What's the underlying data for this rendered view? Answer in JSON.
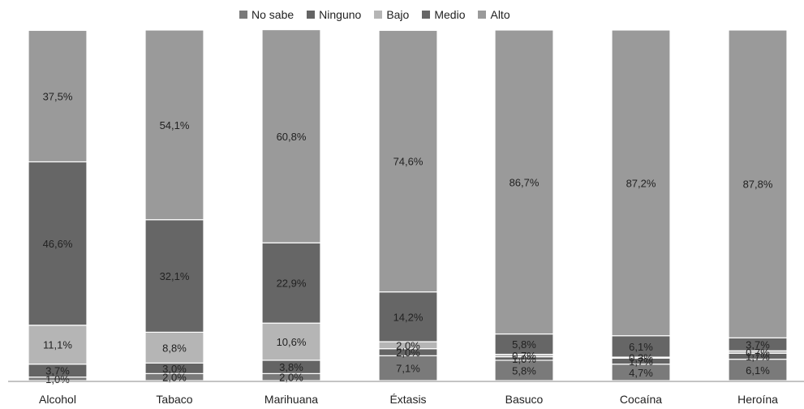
{
  "chart_data": {
    "type": "bar",
    "stacked": true,
    "percent": true,
    "categories": [
      "Alcohol",
      "Tabaco",
      "Marihuana",
      "Éxtasis",
      "Basuco",
      "Cocaína",
      "Heroína"
    ],
    "series": [
      {
        "name": "No sabe",
        "color": "#7a7a7a",
        "values": [
          1.0,
          2.0,
          2.0,
          7.1,
          5.8,
          4.7,
          6.1
        ],
        "labels": [
          "1,0%",
          "2,0%",
          "2,0%",
          "7,1%",
          "5,8%",
          "4,7%",
          "6,1%"
        ]
      },
      {
        "name": "Ninguno",
        "color": "#646464",
        "values": [
          3.7,
          3.0,
          3.8,
          2.0,
          1.0,
          1.7,
          1.7
        ],
        "labels": [
          "3,7%",
          "3,0%",
          "3,8%",
          "2,0%",
          "1,0%",
          "1,7%",
          "1,7%"
        ]
      },
      {
        "name": "Bajo",
        "color": "#b5b5b5",
        "values": [
          11.1,
          8.8,
          10.6,
          2.0,
          0.7,
          0.3,
          0.7
        ],
        "labels": [
          "11,1%",
          "8,8%",
          "10,6%",
          "2,0%",
          "0,7%",
          "0,3%",
          "0,7%"
        ]
      },
      {
        "name": "Medio",
        "color": "#666666",
        "values": [
          46.6,
          32.1,
          22.9,
          14.2,
          5.8,
          6.1,
          3.7
        ],
        "labels": [
          "46,6%",
          "32,1%",
          "22,9%",
          "14,2%",
          "5,8%",
          "6,1%",
          "3,7%"
        ]
      },
      {
        "name": "Alto",
        "color": "#9a9a9a",
        "values": [
          37.5,
          54.1,
          60.8,
          74.6,
          86.7,
          87.2,
          87.8
        ],
        "labels": [
          "37,5%",
          "54,1%",
          "60,8%",
          "74,6%",
          "86,7%",
          "87,2%",
          "87,8%"
        ]
      }
    ],
    "ylim": [
      0,
      100
    ],
    "grid": false,
    "legend_position": "top-center"
  }
}
